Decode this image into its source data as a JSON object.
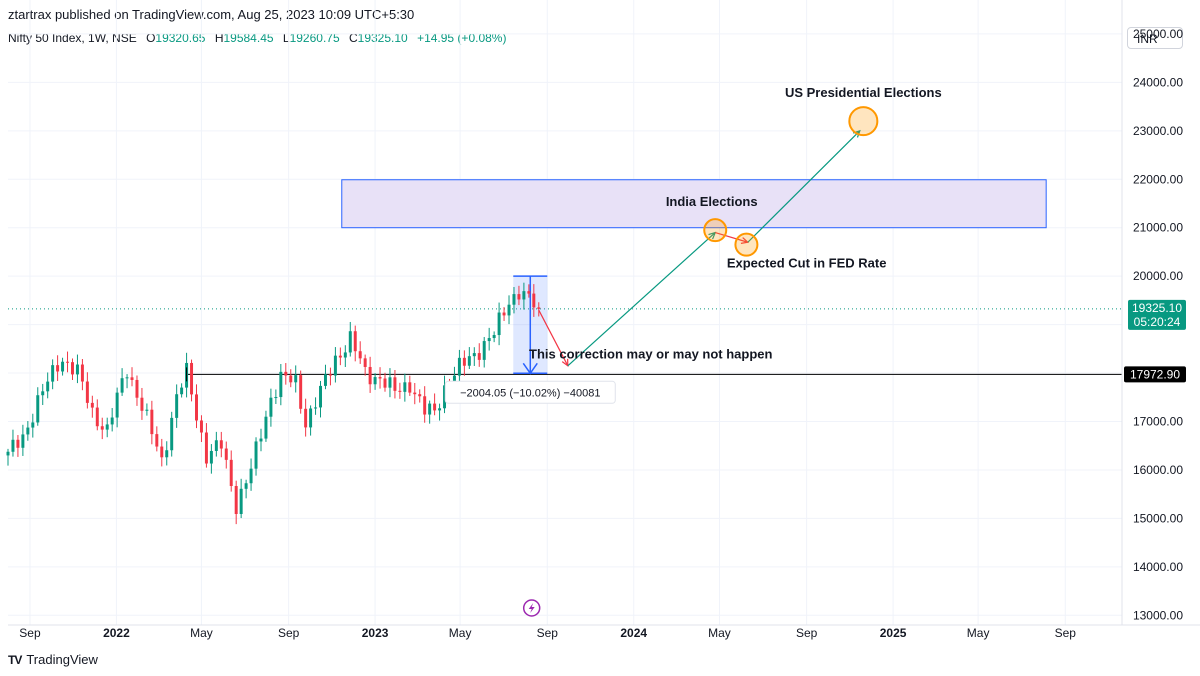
{
  "header": {
    "published": "ztartrax published on TradingView.com, Aug 25, 2023 10:09 UTC+5:30",
    "symbol": "Nifty 50 Index, 1W, NSE",
    "open_label": "O",
    "open": "19320.65",
    "high_label": "H",
    "high": "19584.45",
    "low_label": "L",
    "low": "19260.75",
    "close_label": "C",
    "close": "19325.10",
    "change": "+14.95 (+0.08%)",
    "currency": "INR"
  },
  "footer": {
    "brand": "TradingView",
    "logo_icon": "tradingview-logo-icon"
  },
  "colors": {
    "up": "#089981",
    "down": "#f23645",
    "zone_fill": "#e8e1f7",
    "zone_border": "#2962ff",
    "marker": "#ff9800",
    "measure": "#2962ff"
  },
  "chart_data": {
    "type": "candlestick",
    "interval": "1W",
    "y_range": [
      12800,
      25700
    ],
    "y_ticks": [
      13000,
      14000,
      15000,
      16000,
      17000,
      18000,
      19000,
      20000,
      21000,
      22000,
      23000,
      24000,
      25000
    ],
    "y_tick_labels": [
      "13000.00",
      "14000.00",
      "15000.00",
      "16000.00",
      "17000.00",
      "18000.00",
      "19000.00",
      "20000.00",
      "21000.00",
      "22000.00",
      "23000.00",
      "24000.00",
      "25000.00"
    ],
    "x_range": [
      "2021-08-01",
      "2025-11-20"
    ],
    "x_ticks": [
      {
        "date": "2021-09-01",
        "label": "Sep",
        "bold": false
      },
      {
        "date": "2022-01-01",
        "label": "2022",
        "bold": true
      },
      {
        "date": "2022-05-01",
        "label": "May",
        "bold": false
      },
      {
        "date": "2022-09-01",
        "label": "Sep",
        "bold": false
      },
      {
        "date": "2023-01-01",
        "label": "2023",
        "bold": true
      },
      {
        "date": "2023-05-01",
        "label": "May",
        "bold": false
      },
      {
        "date": "2023-09-01",
        "label": "Sep",
        "bold": false
      },
      {
        "date": "2024-01-01",
        "label": "2024",
        "bold": true
      },
      {
        "date": "2024-05-01",
        "label": "May",
        "bold": false
      },
      {
        "date": "2024-09-01",
        "label": "Sep",
        "bold": false
      },
      {
        "date": "2025-01-01",
        "label": "2025",
        "bold": true
      },
      {
        "date": "2025-05-01",
        "label": "May",
        "bold": false
      },
      {
        "date": "2025-09-01",
        "label": "Sep",
        "bold": false
      }
    ],
    "close_anchors": [
      [
        "2021-08-01",
        16300
      ],
      [
        "2021-08-22",
        16700
      ],
      [
        "2021-09-12",
        17400
      ],
      [
        "2021-10-10",
        18200
      ],
      [
        "2021-10-17",
        18300
      ],
      [
        "2021-11-07",
        18000
      ],
      [
        "2021-11-28",
        17200
      ],
      [
        "2021-12-19",
        16800
      ],
      [
        "2022-01-09",
        17800
      ],
      [
        "2022-01-16",
        18100
      ],
      [
        "2022-02-06",
        17300
      ],
      [
        "2022-03-06",
        16200
      ],
      [
        "2022-03-27",
        17500
      ],
      [
        "2022-04-10",
        18000
      ],
      [
        "2022-05-08",
        16300
      ],
      [
        "2022-05-29",
        16500
      ],
      [
        "2022-06-19",
        15300
      ],
      [
        "2022-07-10",
        16000
      ],
      [
        "2022-08-07",
        17500
      ],
      [
        "2022-08-21",
        17900
      ],
      [
        "2022-09-11",
        17800
      ],
      [
        "2022-09-25",
        17000
      ],
      [
        "2022-10-16",
        17600
      ],
      [
        "2022-11-06",
        18300
      ],
      [
        "2022-11-27",
        18700
      ],
      [
        "2022-12-18",
        18000
      ],
      [
        "2023-01-08",
        17900
      ],
      [
        "2023-01-29",
        17600
      ],
      [
        "2023-02-19",
        17800
      ],
      [
        "2023-03-12",
        17200
      ],
      [
        "2023-03-26",
        17200
      ],
      [
        "2023-04-09",
        17700
      ],
      [
        "2023-04-30",
        18100
      ],
      [
        "2023-05-21",
        18400
      ],
      [
        "2023-06-18",
        18800
      ],
      [
        "2023-07-09",
        19500
      ],
      [
        "2023-07-23",
        19700
      ],
      [
        "2023-08-06",
        19500
      ],
      [
        "2023-08-20",
        19325
      ]
    ],
    "last_close": 19325.1,
    "last_close_label": "19325.10",
    "countdown": "05:20:24",
    "support_level": 17972.9,
    "support_label": "17972.90",
    "support_start": "2022-04-10",
    "measure": {
      "start_date": "2023-07-15",
      "end_date": "2023-09-01",
      "top": 20000,
      "bottom": 17995,
      "label": "−2004.05 (−10.02%) −40081"
    },
    "zone": {
      "start_date": "2022-11-15",
      "end_date": "2025-08-05",
      "low": 21000,
      "high": 21990
    },
    "projection_path": [
      [
        "2023-08-20",
        19300
      ],
      [
        "2023-09-30",
        18150
      ],
      [
        "2024-04-25",
        20900
      ],
      [
        "2024-06-10",
        20700
      ],
      [
        "2024-11-15",
        23000
      ]
    ],
    "markers": [
      {
        "date": "2024-04-25",
        "value": 20950
      },
      {
        "date": "2024-06-08",
        "value": 20650
      },
      {
        "date": "2024-11-20",
        "value": 23200
      }
    ],
    "annotations": [
      {
        "text": "US Presidential Elections",
        "date": "2024-11-20",
        "value": 23700
      },
      {
        "text": "India Elections",
        "date": "2024-04-20",
        "value": 21450
      },
      {
        "text": "Expected Cut in FED Rate",
        "date": "2024-09-01",
        "value": 20180
      },
      {
        "text": "This correction may or may not happen",
        "date": "2024-01-25",
        "value": 18300
      }
    ],
    "flash_icon": "lightning-event-icon",
    "flash_date": "2023-08-10"
  }
}
